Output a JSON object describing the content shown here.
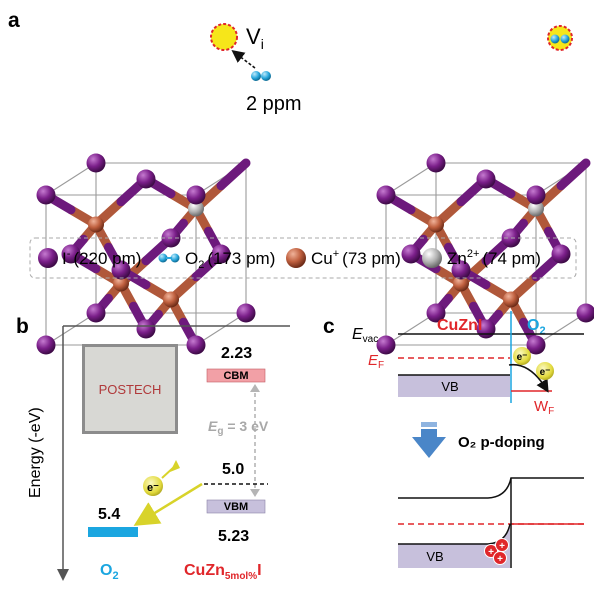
{
  "panel_a": {
    "letter": "a",
    "vacancy_label": "V",
    "vacancy_sub": "i",
    "o2_amount": "2 ppm"
  },
  "legend": {
    "iodide_label": "I",
    "iodide_charge": "-",
    "iodide_size": "(220 pm)",
    "o2_label": "O",
    "o2_sub": "2",
    "o2_size": "(173 pm)",
    "cu_label": "Cu",
    "cu_charge": "+",
    "cu_size": "(73 pm)",
    "zn_label": "Zn",
    "zn_charge": "2+",
    "zn_size": "(74 pm)"
  },
  "panel_b": {
    "letter": "b",
    "y_axis_label": "Energy (-eV)",
    "logo_text": "POSTECH",
    "cbm_value": "2.23",
    "cbm_label": "CBM",
    "bandgap_symbol": "E",
    "bandgap_sub": "g",
    "bandgap_value": " = 3 eV",
    "fermi_value": "5.0",
    "vbm_label": "VBM",
    "vbm_value": "5.23",
    "o2_level_value": "5.4",
    "electron_symbol": "e⁻",
    "o2_label": "O",
    "o2_sub": "2",
    "material_main": "CuZn",
    "material_sub": "5mol%",
    "material_end": "I"
  },
  "panel_c": {
    "letter": "c",
    "evac_symbol": "E",
    "evac_sub": "vac",
    "material_label": "CuZnI",
    "o2_label": "O",
    "o2_sub": "2",
    "ef_symbol": "E",
    "ef_sub": "F",
    "vb_label": "VB",
    "wf_symbol": "W",
    "wf_sub": "F",
    "electron_symbol": "e⁻",
    "doping_label": "O₂ p-doping",
    "vb_label_bottom": "VB",
    "hole_symbol": "+"
  },
  "colors": {
    "iodide": "#7b1f8a",
    "copper": "#c0603f",
    "zinc": "#b0b0b0",
    "oxygen": "#2aa8dd",
    "vacancy": "#f6e61a",
    "red": "#e0262a",
    "blue": "#1ba6e0",
    "cbm_fill": "#f2a0a6",
    "vbm_fill": "#c7c0dc",
    "electron": "#e8e04a",
    "arrow_yellow": "#d8d32a",
    "doping_arrow": "#4a86c8"
  }
}
